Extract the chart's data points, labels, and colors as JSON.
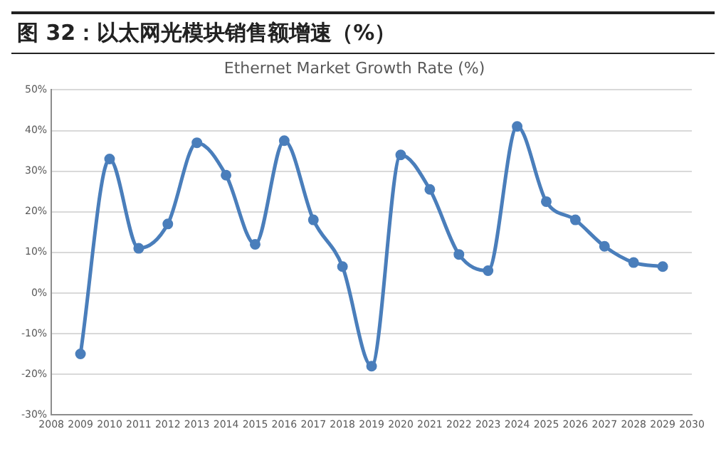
{
  "chart_data": {
    "type": "line",
    "title": "图 32：以太网光模块销售额增速（%）",
    "subtitle": "Ethernet Market Growth Rate (%)",
    "x": [
      2009,
      2010,
      2011,
      2012,
      2013,
      2014,
      2015,
      2016,
      2017,
      2018,
      2019,
      2020,
      2021,
      2022,
      2023,
      2024,
      2025,
      2026,
      2027,
      2028,
      2029
    ],
    "series": [
      {
        "color": "#4a7ebb",
        "values": [
          -15,
          33,
          11,
          17,
          37,
          29,
          12,
          37.5,
          18,
          6.5,
          -18,
          34,
          25.5,
          9.5,
          5.5,
          41,
          22.5,
          18,
          11.5,
          7.5,
          6.5
        ]
      }
    ],
    "xlim": [
      2008,
      2030
    ],
    "xticks": [
      2008,
      2009,
      2010,
      2011,
      2012,
      2013,
      2014,
      2015,
      2016,
      2017,
      2018,
      2019,
      2020,
      2021,
      2022,
      2023,
      2024,
      2025,
      2026,
      2027,
      2028,
      2029,
      2030
    ],
    "ylim": [
      -30,
      50
    ],
    "yticks": [
      {
        "value": -30,
        "label": "-30%"
      },
      {
        "value": -20,
        "label": "-20%"
      },
      {
        "value": -10,
        "label": "-10%"
      },
      {
        "value": 0,
        "label": "0%"
      },
      {
        "value": 10,
        "label": "10%"
      },
      {
        "value": 20,
        "label": "20%"
      },
      {
        "value": 30,
        "label": "30%"
      },
      {
        "value": 40,
        "label": "40%"
      },
      {
        "value": 50,
        "label": "50%"
      }
    ],
    "grid": "y",
    "legend": false,
    "marker": "circle",
    "line_style": "solid"
  }
}
